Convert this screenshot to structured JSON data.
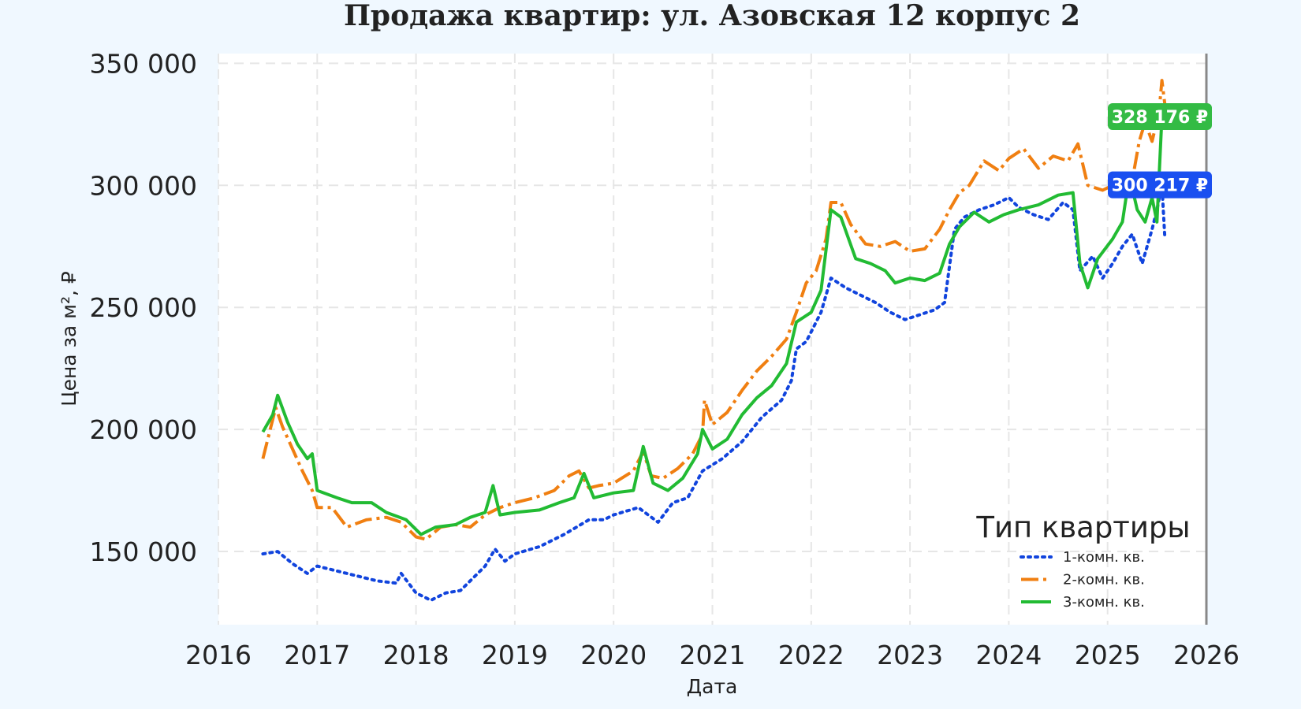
{
  "chart_data": {
    "type": "line",
    "title": "Продажа квартир: ул. Азовская 12 корпус 2",
    "xlabel": "Дата",
    "ylabel": "Цена за м², ₽",
    "xlim": [
      2016.0,
      2026.0
    ],
    "ylim": [
      120000,
      354000
    ],
    "x_ticks": [
      2016,
      2017,
      2018,
      2019,
      2020,
      2021,
      2022,
      2023,
      2024,
      2025,
      2026
    ],
    "x_tick_labels": [
      "2016",
      "2017",
      "2018",
      "2019",
      "2020",
      "2021",
      "2022",
      "2023",
      "2024",
      "2025",
      "2026"
    ],
    "y_ticks": [
      150000,
      200000,
      250000,
      300000,
      350000
    ],
    "y_tick_labels": [
      "150 000",
      "200 000",
      "250 000",
      "300 000",
      "350 000"
    ],
    "grid": true,
    "legend": {
      "title": "Тип квартиры",
      "position": "bottom-right"
    },
    "vline_x": 2026.0,
    "series": [
      {
        "name": "1-комн. кв.",
        "color": "#1144dd",
        "style": "dotted",
        "points": [
          [
            2016.45,
            149000
          ],
          [
            2016.6,
            150000
          ],
          [
            2016.75,
            145000
          ],
          [
            2016.9,
            141000
          ],
          [
            2017.0,
            144000
          ],
          [
            2017.2,
            142000
          ],
          [
            2017.4,
            140000
          ],
          [
            2017.6,
            138000
          ],
          [
            2017.8,
            137000
          ],
          [
            2017.85,
            141000
          ],
          [
            2018.0,
            133000
          ],
          [
            2018.15,
            130000
          ],
          [
            2018.3,
            133000
          ],
          [
            2018.45,
            134000
          ],
          [
            2018.55,
            138000
          ],
          [
            2018.7,
            144000
          ],
          [
            2018.8,
            151000
          ],
          [
            2018.9,
            146000
          ],
          [
            2019.0,
            149000
          ],
          [
            2019.25,
            152000
          ],
          [
            2019.5,
            157000
          ],
          [
            2019.75,
            163000
          ],
          [
            2019.9,
            163000
          ],
          [
            2020.0,
            165000
          ],
          [
            2020.25,
            168000
          ],
          [
            2020.45,
            162000
          ],
          [
            2020.6,
            170000
          ],
          [
            2020.75,
            172000
          ],
          [
            2020.9,
            183000
          ],
          [
            2021.1,
            188000
          ],
          [
            2021.3,
            195000
          ],
          [
            2021.5,
            205000
          ],
          [
            2021.7,
            212000
          ],
          [
            2021.8,
            220000
          ],
          [
            2021.85,
            233000
          ],
          [
            2021.95,
            236000
          ],
          [
            2022.0,
            240000
          ],
          [
            2022.1,
            248000
          ],
          [
            2022.2,
            262000
          ],
          [
            2022.35,
            258000
          ],
          [
            2022.5,
            255000
          ],
          [
            2022.65,
            252000
          ],
          [
            2022.8,
            248000
          ],
          [
            2022.95,
            245000
          ],
          [
            2023.1,
            247000
          ],
          [
            2023.25,
            249000
          ],
          [
            2023.35,
            252000
          ],
          [
            2023.45,
            282000
          ],
          [
            2023.55,
            287000
          ],
          [
            2023.7,
            290000
          ],
          [
            2023.85,
            292000
          ],
          [
            2024.0,
            295000
          ],
          [
            2024.1,
            291000
          ],
          [
            2024.25,
            288000
          ],
          [
            2024.4,
            286000
          ],
          [
            2024.55,
            293000
          ],
          [
            2024.65,
            290000
          ],
          [
            2024.72,
            265000
          ],
          [
            2024.85,
            271000
          ],
          [
            2024.95,
            262000
          ],
          [
            2025.05,
            268000
          ],
          [
            2025.15,
            275000
          ],
          [
            2025.25,
            280000
          ],
          [
            2025.35,
            268000
          ],
          [
            2025.45,
            282000
          ],
          [
            2025.5,
            290000
          ],
          [
            2025.55,
            300217
          ],
          [
            2025.58,
            278000
          ]
        ]
      },
      {
        "name": "2-комн. кв.",
        "color": "#f07f11",
        "style": "dashdot",
        "points": [
          [
            2016.45,
            188000
          ],
          [
            2016.5,
            196000
          ],
          [
            2016.58,
            209000
          ],
          [
            2016.65,
            201000
          ],
          [
            2016.75,
            192000
          ],
          [
            2016.85,
            183000
          ],
          [
            2016.95,
            175000
          ],
          [
            2017.0,
            168000
          ],
          [
            2017.15,
            168000
          ],
          [
            2017.3,
            160000
          ],
          [
            2017.5,
            163000
          ],
          [
            2017.7,
            164000
          ],
          [
            2017.85,
            162000
          ],
          [
            2018.0,
            156000
          ],
          [
            2018.1,
            155000
          ],
          [
            2018.25,
            160000
          ],
          [
            2018.4,
            161000
          ],
          [
            2018.55,
            160000
          ],
          [
            2018.7,
            165000
          ],
          [
            2018.85,
            168000
          ],
          [
            2019.0,
            170000
          ],
          [
            2019.2,
            172000
          ],
          [
            2019.4,
            175000
          ],
          [
            2019.55,
            181000
          ],
          [
            2019.65,
            183000
          ],
          [
            2019.75,
            176000
          ],
          [
            2019.85,
            177000
          ],
          [
            2020.0,
            178000
          ],
          [
            2020.2,
            183000
          ],
          [
            2020.3,
            191000
          ],
          [
            2020.38,
            181000
          ],
          [
            2020.5,
            180000
          ],
          [
            2020.65,
            184000
          ],
          [
            2020.8,
            190000
          ],
          [
            2020.9,
            198000
          ],
          [
            2020.92,
            212000
          ],
          [
            2021.0,
            202000
          ],
          [
            2021.15,
            207000
          ],
          [
            2021.3,
            216000
          ],
          [
            2021.45,
            224000
          ],
          [
            2021.6,
            230000
          ],
          [
            2021.75,
            237000
          ],
          [
            2021.85,
            248000
          ],
          [
            2021.95,
            260000
          ],
          [
            2022.05,
            265000
          ],
          [
            2022.15,
            278000
          ],
          [
            2022.2,
            293000
          ],
          [
            2022.3,
            293000
          ],
          [
            2022.4,
            284000
          ],
          [
            2022.55,
            276000
          ],
          [
            2022.7,
            275000
          ],
          [
            2022.85,
            277000
          ],
          [
            2023.0,
            273000
          ],
          [
            2023.15,
            274000
          ],
          [
            2023.3,
            282000
          ],
          [
            2023.4,
            290000
          ],
          [
            2023.5,
            297000
          ],
          [
            2023.6,
            300000
          ],
          [
            2023.75,
            310000
          ],
          [
            2023.9,
            306000
          ],
          [
            2024.0,
            311000
          ],
          [
            2024.15,
            315000
          ],
          [
            2024.3,
            307000
          ],
          [
            2024.45,
            312000
          ],
          [
            2024.6,
            310000
          ],
          [
            2024.7,
            317000
          ],
          [
            2024.8,
            300000
          ],
          [
            2024.95,
            298000
          ],
          [
            2025.05,
            300000
          ],
          [
            2025.15,
            305000
          ],
          [
            2025.25,
            302000
          ],
          [
            2025.32,
            318000
          ],
          [
            2025.38,
            326000
          ],
          [
            2025.45,
            318000
          ],
          [
            2025.52,
            330000
          ],
          [
            2025.55,
            343000
          ],
          [
            2025.58,
            333000
          ],
          [
            2026.0,
            333000
          ]
        ]
      },
      {
        "name": "3-комн. кв.",
        "color": "#22bb33",
        "style": "solid",
        "points": [
          [
            2016.45,
            199000
          ],
          [
            2016.55,
            206000
          ],
          [
            2016.6,
            214000
          ],
          [
            2016.7,
            203000
          ],
          [
            2016.8,
            194000
          ],
          [
            2016.9,
            188000
          ],
          [
            2016.95,
            190000
          ],
          [
            2017.0,
            175000
          ],
          [
            2017.2,
            172000
          ],
          [
            2017.35,
            170000
          ],
          [
            2017.55,
            170000
          ],
          [
            2017.7,
            166000
          ],
          [
            2017.9,
            163000
          ],
          [
            2018.05,
            157000
          ],
          [
            2018.2,
            160000
          ],
          [
            2018.4,
            161000
          ],
          [
            2018.55,
            164000
          ],
          [
            2018.7,
            166000
          ],
          [
            2018.78,
            177000
          ],
          [
            2018.85,
            165000
          ],
          [
            2019.0,
            166000
          ],
          [
            2019.25,
            167000
          ],
          [
            2019.45,
            170000
          ],
          [
            2019.6,
            172000
          ],
          [
            2019.7,
            182000
          ],
          [
            2019.8,
            172000
          ],
          [
            2020.0,
            174000
          ],
          [
            2020.2,
            175000
          ],
          [
            2020.3,
            193000
          ],
          [
            2020.4,
            178000
          ],
          [
            2020.55,
            175000
          ],
          [
            2020.7,
            180000
          ],
          [
            2020.85,
            190000
          ],
          [
            2020.9,
            200000
          ],
          [
            2021.0,
            192000
          ],
          [
            2021.15,
            196000
          ],
          [
            2021.3,
            206000
          ],
          [
            2021.45,
            213000
          ],
          [
            2021.6,
            218000
          ],
          [
            2021.75,
            227000
          ],
          [
            2021.85,
            244000
          ],
          [
            2022.0,
            248000
          ],
          [
            2022.1,
            257000
          ],
          [
            2022.2,
            290000
          ],
          [
            2022.3,
            287000
          ],
          [
            2022.45,
            270000
          ],
          [
            2022.6,
            268000
          ],
          [
            2022.75,
            265000
          ],
          [
            2022.85,
            260000
          ],
          [
            2023.0,
            262000
          ],
          [
            2023.15,
            261000
          ],
          [
            2023.3,
            264000
          ],
          [
            2023.4,
            276000
          ],
          [
            2023.5,
            283000
          ],
          [
            2023.65,
            289000
          ],
          [
            2023.8,
            285000
          ],
          [
            2023.95,
            288000
          ],
          [
            2024.1,
            290000
          ],
          [
            2024.3,
            292000
          ],
          [
            2024.5,
            296000
          ],
          [
            2024.65,
            297000
          ],
          [
            2024.72,
            268000
          ],
          [
            2024.8,
            258000
          ],
          [
            2024.9,
            270000
          ],
          [
            2025.05,
            278000
          ],
          [
            2025.15,
            285000
          ],
          [
            2025.22,
            304000
          ],
          [
            2025.3,
            290000
          ],
          [
            2025.38,
            285000
          ],
          [
            2025.45,
            295000
          ],
          [
            2025.5,
            285000
          ],
          [
            2025.55,
            328176
          ],
          [
            2025.58,
            328176
          ]
        ]
      }
    ],
    "badges": [
      {
        "text": "328 176 ₽",
        "value": 328176,
        "color": "#33bb44"
      },
      {
        "text": "300 217 ₽",
        "value": 300217,
        "color": "#1a4ff0"
      }
    ]
  }
}
